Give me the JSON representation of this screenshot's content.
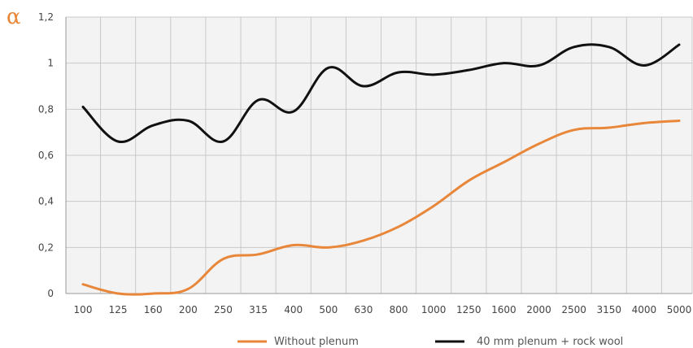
{
  "chart_data": {
    "type": "line",
    "ylabel": "α",
    "ylim": [
      0,
      1.2
    ],
    "yticks": [
      "0",
      "0,2",
      "0,4",
      "0,6",
      "0,8",
      "1",
      "1,2"
    ],
    "ytick_values": [
      0,
      0.2,
      0.4,
      0.6,
      0.8,
      1.0,
      1.2
    ],
    "categories": [
      "100",
      "125",
      "160",
      "200",
      "250",
      "315",
      "400",
      "500",
      "630",
      "800",
      "1000",
      "1250",
      "1600",
      "2000",
      "2500",
      "3150",
      "4000",
      "5000"
    ],
    "grid": true,
    "legend_position": "bottom",
    "series": [
      {
        "name": "Without plenum",
        "color": "#E8873A",
        "values": [
          0.04,
          0.0,
          0.0,
          0.02,
          0.15,
          0.17,
          0.21,
          0.2,
          0.23,
          0.29,
          0.38,
          0.49,
          0.57,
          0.65,
          0.71,
          0.72,
          0.74,
          0.75
        ]
      },
      {
        "name": "40 mm plenum + rock wool",
        "color": "#111111",
        "values": [
          0.81,
          0.66,
          0.73,
          0.75,
          0.66,
          0.84,
          0.79,
          0.98,
          0.9,
          0.96,
          0.95,
          0.97,
          1.0,
          0.99,
          1.07,
          1.07,
          0.99,
          1.08
        ]
      }
    ]
  }
}
